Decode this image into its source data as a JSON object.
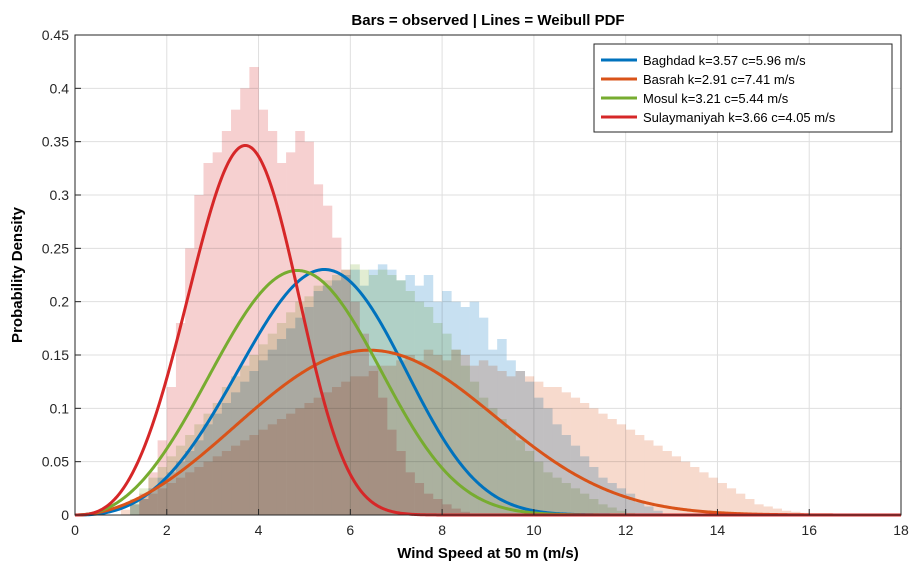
{
  "chart_data": {
    "type": "bar",
    "title": "Bars = observed  |  Lines = Weibull PDF",
    "xlabel": "Wind Speed at 50 m (m/s)",
    "ylabel": "Probability Density",
    "xlim": [
      0,
      18
    ],
    "ylim": [
      0,
      0.45
    ],
    "xticks": [
      0,
      2,
      4,
      6,
      8,
      10,
      12,
      14,
      16,
      18
    ],
    "yticks": [
      0,
      0.05,
      0.1,
      0.15,
      0.2,
      0.25,
      0.3,
      0.35,
      0.4,
      0.45
    ],
    "ytick_labels": [
      "0",
      "0.05",
      "0.1",
      "0.15",
      "0.2",
      "0.25",
      "0.3",
      "0.35",
      "0.4",
      "0.45"
    ],
    "grid": true,
    "legend_position": "top-right",
    "bin_width": 0.2,
    "series": [
      {
        "name": "Baghdad  k=3.57  c=5.96 m/s",
        "color": "#0072BD",
        "weibull": {
          "k": 3.57,
          "c": 5.96
        },
        "hist_start": 1.2,
        "hist": [
          0.01,
          0.015,
          0.025,
          0.035,
          0.04,
          0.05,
          0.06,
          0.07,
          0.085,
          0.095,
          0.105,
          0.115,
          0.125,
          0.135,
          0.145,
          0.155,
          0.165,
          0.175,
          0.185,
          0.195,
          0.21,
          0.215,
          0.22,
          0.225,
          0.23,
          0.215,
          0.23,
          0.235,
          0.23,
          0.22,
          0.225,
          0.215,
          0.225,
          0.2,
          0.21,
          0.2,
          0.195,
          0.2,
          0.185,
          0.155,
          0.165,
          0.145,
          0.135,
          0.125,
          0.11,
          0.1,
          0.085,
          0.075,
          0.065,
          0.055,
          0.045,
          0.035,
          0.03,
          0.025,
          0.02,
          0.012,
          0.008,
          0.004
        ]
      },
      {
        "name": "Basrah  k=2.91  c=7.41 m/s",
        "color": "#D95319",
        "weibull": {
          "k": 2.91,
          "c": 7.41
        },
        "hist_start": 1.0,
        "hist": [
          0.005,
          0.01,
          0.015,
          0.02,
          0.025,
          0.03,
          0.035,
          0.04,
          0.045,
          0.05,
          0.055,
          0.06,
          0.065,
          0.07,
          0.075,
          0.08,
          0.085,
          0.09,
          0.095,
          0.1,
          0.105,
          0.11,
          0.115,
          0.12,
          0.125,
          0.13,
          0.13,
          0.135,
          0.14,
          0.14,
          0.145,
          0.15,
          0.145,
          0.155,
          0.15,
          0.145,
          0.155,
          0.15,
          0.14,
          0.145,
          0.14,
          0.135,
          0.13,
          0.135,
          0.13,
          0.125,
          0.12,
          0.12,
          0.115,
          0.11,
          0.105,
          0.1,
          0.095,
          0.09,
          0.085,
          0.08,
          0.075,
          0.07,
          0.065,
          0.06,
          0.055,
          0.05,
          0.045,
          0.04,
          0.035,
          0.03,
          0.025,
          0.02,
          0.015,
          0.01,
          0.008,
          0.006,
          0.004,
          0.003,
          0.002,
          0.001,
          0.001,
          0.001,
          0.001
        ]
      },
      {
        "name": "Mosul  k=3.21  c=5.44 m/s",
        "color": "#77AC30",
        "weibull": {
          "k": 3.21,
          "c": 5.44
        },
        "hist_start": 1.2,
        "hist": [
          0.015,
          0.025,
          0.035,
          0.045,
          0.055,
          0.065,
          0.075,
          0.085,
          0.095,
          0.105,
          0.12,
          0.13,
          0.14,
          0.15,
          0.16,
          0.17,
          0.18,
          0.19,
          0.2,
          0.205,
          0.215,
          0.22,
          0.225,
          0.23,
          0.235,
          0.23,
          0.225,
          0.23,
          0.225,
          0.22,
          0.21,
          0.2,
          0.195,
          0.18,
          0.17,
          0.155,
          0.14,
          0.125,
          0.11,
          0.1,
          0.09,
          0.08,
          0.07,
          0.06,
          0.05,
          0.04,
          0.035,
          0.03,
          0.025,
          0.02,
          0.015,
          0.01,
          0.007,
          0.004,
          0.002
        ]
      },
      {
        "name": "Sulaymaniyah  k=3.66  c=4.05 m/s",
        "color": "#D62728",
        "weibull": {
          "k": 3.66,
          "c": 4.05
        },
        "hist_start": 1.4,
        "hist": [
          0.02,
          0.04,
          0.07,
          0.12,
          0.18,
          0.25,
          0.3,
          0.33,
          0.34,
          0.36,
          0.38,
          0.4,
          0.42,
          0.38,
          0.36,
          0.33,
          0.34,
          0.36,
          0.35,
          0.31,
          0.29,
          0.26,
          0.23,
          0.2,
          0.17,
          0.14,
          0.11,
          0.08,
          0.06,
          0.04,
          0.03,
          0.02,
          0.015,
          0.01,
          0.006,
          0.003
        ]
      }
    ],
    "observed_overlap_color": "#b7977a"
  }
}
